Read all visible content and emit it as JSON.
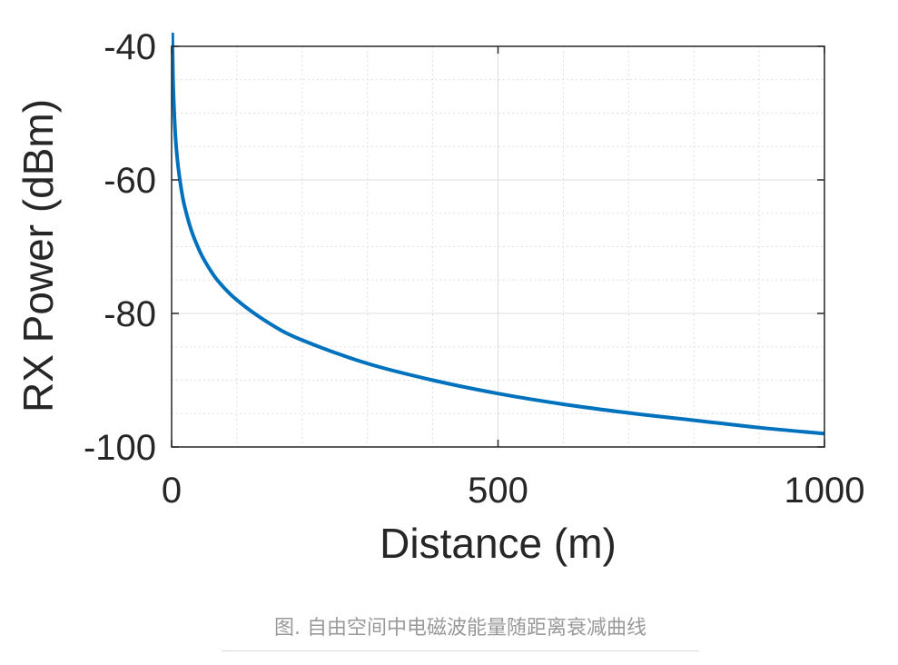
{
  "chart_data": {
    "type": "line",
    "title": "",
    "xlabel": "Distance (m)",
    "ylabel": "RX Power (dBm)",
    "xlim": [
      0,
      1000
    ],
    "ylim": [
      -100,
      -40
    ],
    "xticks": [
      0,
      500,
      1000
    ],
    "xtick_labels": [
      "0",
      "500",
      "1000"
    ],
    "yticks": [
      -100,
      -80,
      -60,
      -40
    ],
    "ytick_labels": [
      "-100",
      "-80",
      "-60",
      "-40"
    ],
    "grid": true,
    "minor_grid": true,
    "legend": "none",
    "series": [
      {
        "color": "#0072bd",
        "x": [
          1,
          2,
          3,
          5,
          7,
          10,
          15,
          20,
          30,
          40,
          50,
          70,
          100,
          150,
          200,
          300,
          400,
          500,
          600,
          700,
          800,
          900,
          1000
        ],
        "y": [
          -38,
          -44,
          -47.5,
          -52,
          -55,
          -58,
          -61.5,
          -64,
          -67.5,
          -70,
          -72,
          -75,
          -78,
          -81.5,
          -84,
          -87.5,
          -90,
          -92,
          -93.6,
          -94.9,
          -96,
          -97.1,
          -98
        ]
      }
    ]
  },
  "caption": "图. 自由空间中电磁波能量随距离衰减曲线"
}
